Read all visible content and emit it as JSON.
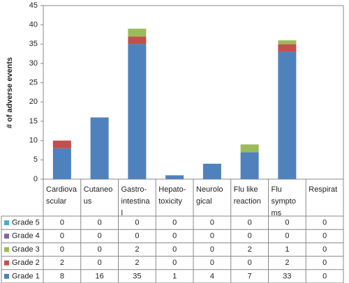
{
  "chart_data": {
    "type": "stacked_bar",
    "y_label": "# of adverse events",
    "categories": [
      [
        "Cardiova",
        "scular"
      ],
      [
        "Cutaneo",
        "us"
      ],
      [
        "Gastro-",
        "intestina",
        "l"
      ],
      [
        "Hepato-",
        "toxicity"
      ],
      [
        "Neurolo",
        "gical"
      ],
      [
        "Flu like",
        "reaction"
      ],
      [
        "Flu",
        "sympto",
        "ms"
      ],
      [
        "Respirat"
      ]
    ],
    "series": [
      {
        "name": "Grade 1",
        "color": "#4f81bd",
        "values": [
          8,
          16,
          35,
          1,
          4,
          7,
          33,
          0
        ]
      },
      {
        "name": "Grade 2",
        "color": "#c0504d",
        "values": [
          2,
          0,
          2,
          0,
          0,
          0,
          2,
          0
        ]
      },
      {
        "name": "Grade 3",
        "color": "#9bbb59",
        "values": [
          0,
          0,
          2,
          0,
          0,
          2,
          1,
          0
        ]
      },
      {
        "name": "Grade 4",
        "color": "#8064a2",
        "values": [
          0,
          0,
          0,
          0,
          0,
          0,
          0,
          0
        ]
      },
      {
        "name": "Grade 5",
        "color": "#4bacc6",
        "values": [
          0,
          0,
          0,
          0,
          0,
          0,
          0,
          0
        ]
      }
    ],
    "ylim": [
      0,
      45
    ],
    "yticks": [
      0,
      5,
      10,
      15,
      20,
      25,
      30,
      35,
      40,
      45
    ]
  }
}
